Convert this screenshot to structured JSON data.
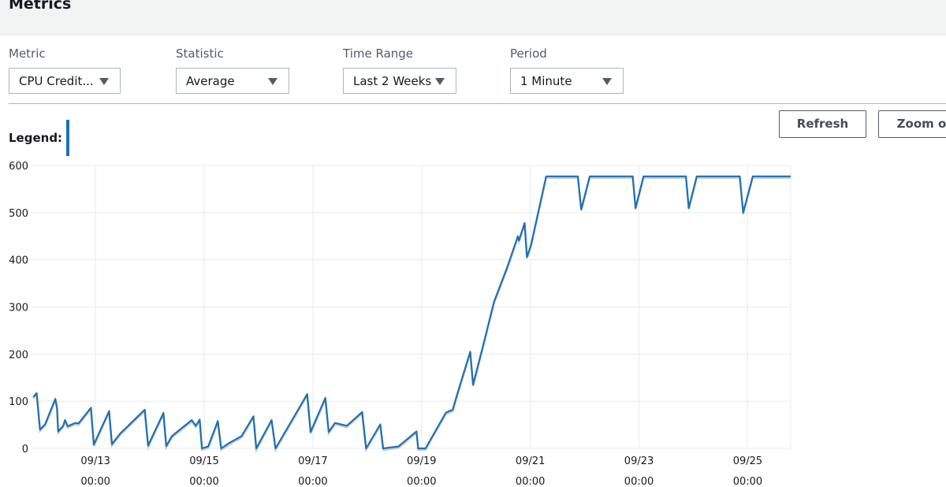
{
  "header": {
    "title": "Metrics"
  },
  "controls": [
    {
      "label": "Metric",
      "value": "CPU Credit..."
    },
    {
      "label": "Statistic",
      "value": "Average"
    },
    {
      "label": "Time Range",
      "value": "Last 2 Weeks"
    },
    {
      "label": "Period",
      "value": "1 Minute"
    }
  ],
  "buttons": {
    "refresh": "Refresh",
    "zoom": "Zoom o"
  },
  "legend": {
    "label": "Legend:",
    "color": "#1f6fb2"
  },
  "chart_data": {
    "type": "line",
    "ylim": [
      0,
      600
    ],
    "yticks": [
      "0",
      "100",
      "200",
      "300",
      "400",
      "500",
      "600"
    ],
    "xlim": [
      "09/11 19:45",
      "09/25 19:00"
    ],
    "xticks": [
      {
        "date": "09/13",
        "time": "00:00"
      },
      {
        "date": "09/15",
        "time": "00:00"
      },
      {
        "date": "09/17",
        "time": "00:00"
      },
      {
        "date": "09/19",
        "time": "00:00"
      },
      {
        "date": "09/21",
        "time": "00:00"
      },
      {
        "date": "09/23",
        "time": "00:00"
      },
      {
        "date": "09/25",
        "time": "00:00"
      }
    ],
    "grid": true,
    "series": [
      {
        "color": "#1f6fb2",
        "points": [
          [
            "09/11 20:30",
            109
          ],
          [
            "09/11 22:00",
            117
          ],
          [
            "09/11 23:30",
            40
          ],
          [
            "09/12 01:45",
            51
          ],
          [
            "09/12 06:15",
            105
          ],
          [
            "09/12 07:00",
            87
          ],
          [
            "09/12 07:30",
            36
          ],
          [
            "09/12 09:45",
            48
          ],
          [
            "09/12 10:30",
            60
          ],
          [
            "09/12 11:45",
            47
          ],
          [
            "09/12 15:00",
            54
          ],
          [
            "09/12 16:30",
            53
          ],
          [
            "09/12 22:00",
            86
          ],
          [
            "09/12 23:15",
            8
          ],
          [
            "09/13 06:00",
            79
          ],
          [
            "09/13 07:15",
            9
          ],
          [
            "09/13 11:00",
            32
          ],
          [
            "09/13 21:45",
            82
          ],
          [
            "09/13 23:15",
            6
          ],
          [
            "09/14 06:00",
            75
          ],
          [
            "09/14 07:15",
            5
          ],
          [
            "09/14 09:45",
            26
          ],
          [
            "09/14 18:30",
            60
          ],
          [
            "09/14 20:15",
            48
          ],
          [
            "09/14 22:00",
            61
          ],
          [
            "09/14 23:00",
            0
          ],
          [
            "09/15 01:45",
            4
          ],
          [
            "09/15 06:00",
            58
          ],
          [
            "09/15 07:30",
            0
          ],
          [
            "09/15 11:15",
            12
          ],
          [
            "09/15 16:30",
            26
          ],
          [
            "09/15 21:45",
            68
          ],
          [
            "09/15 23:00",
            0
          ],
          [
            "09/16 05:45",
            60
          ],
          [
            "09/16 07:30",
            0
          ],
          [
            "09/16 21:30",
            115
          ],
          [
            "09/16 23:00",
            35
          ],
          [
            "09/17 05:30",
            107
          ],
          [
            "09/17 07:00",
            35
          ],
          [
            "09/17 09:45",
            54
          ],
          [
            "09/17 15:00",
            48
          ],
          [
            "09/17 21:45",
            77
          ],
          [
            "09/17 23:30",
            0
          ],
          [
            "09/18 05:45",
            51
          ],
          [
            "09/18 07:00",
            0
          ],
          [
            "09/18 13:45",
            4
          ],
          [
            "09/18 15:45",
            12
          ],
          [
            "09/18 21:45",
            36
          ],
          [
            "09/18 22:30",
            0
          ],
          [
            "09/19 01:45",
            0
          ],
          [
            "09/19 10:45",
            76
          ],
          [
            "09/19 13:45",
            82
          ],
          [
            "09/19 15:45",
            115
          ],
          [
            "09/19 21:30",
            205
          ],
          [
            "09/19 22:45",
            135
          ],
          [
            "09/20 03:15",
            220
          ],
          [
            "09/20 08:00",
            311
          ],
          [
            "09/20 09:45",
            333
          ],
          [
            "09/20 13:45",
            383
          ],
          [
            "09/20 18:30",
            450
          ],
          [
            "09/20 19:00",
            441
          ],
          [
            "09/20 21:30",
            478
          ],
          [
            "09/20 22:30",
            406
          ],
          [
            "09/21 00:15",
            430
          ],
          [
            "09/21 07:00",
            577
          ],
          [
            "09/21 21:00",
            577
          ],
          [
            "09/21 22:30",
            507
          ],
          [
            "09/22 02:15",
            577
          ],
          [
            "09/22 21:15",
            577
          ],
          [
            "09/22 22:30",
            510
          ],
          [
            "09/23 02:00",
            577
          ],
          [
            "09/23 20:45",
            577
          ],
          [
            "09/23 22:00",
            510
          ],
          [
            "09/24 01:30",
            577
          ],
          [
            "09/24 20:30",
            577
          ],
          [
            "09/24 22:00",
            500
          ],
          [
            "09/25 02:15",
            577
          ],
          [
            "09/25 19:00",
            577
          ]
        ]
      }
    ]
  }
}
